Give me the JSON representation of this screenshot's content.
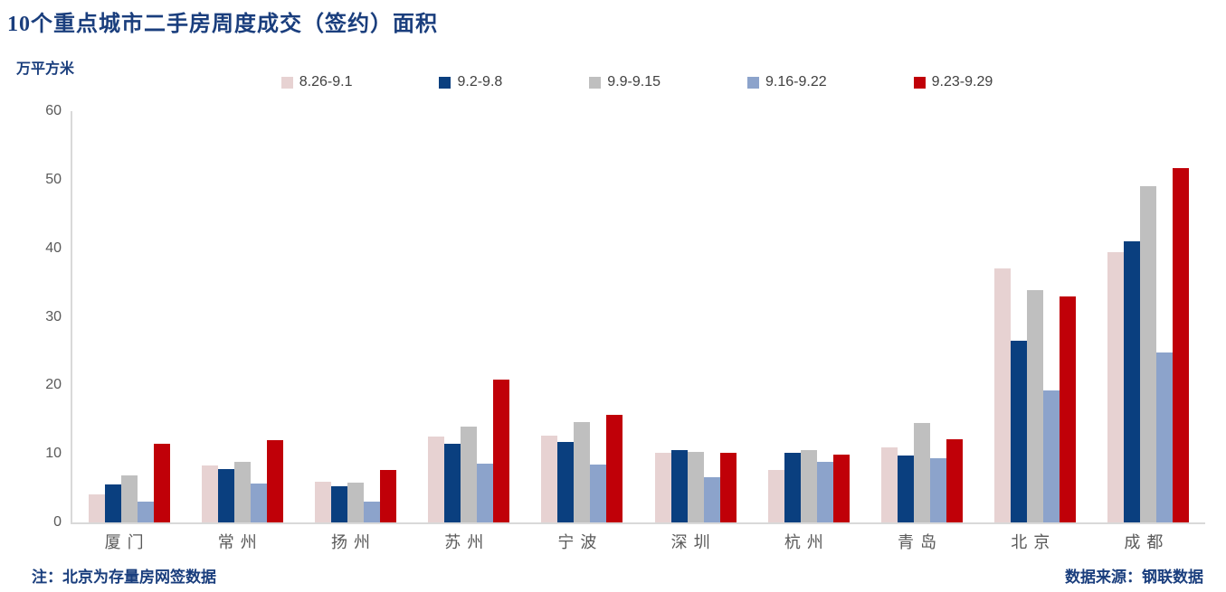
{
  "title": "10个重点城市二手房周度成交（签约）面积",
  "unit_label": "万平方米",
  "footer": {
    "note_left": "注：北京为存量房网签数据",
    "note_right": "数据来源：钢联数据"
  },
  "colors": {
    "title_text": "#1A3E7D",
    "axis_text": "#595959",
    "axis_line": "#D9D9D9",
    "legend_text": "#404040",
    "background": "#FFFFFF"
  },
  "chart_data": {
    "type": "bar",
    "title": "10个重点城市二手房周度成交（签约）面积",
    "xlabel": "",
    "ylabel": "万平方米",
    "ylim": [
      0,
      60
    ],
    "ytick_step": 10,
    "grid": false,
    "legend_position": "top",
    "categories": [
      "厦门",
      "常州",
      "扬州",
      "苏州",
      "宁波",
      "深圳",
      "杭州",
      "青岛",
      "北京",
      "成都"
    ],
    "series": [
      {
        "name": "8.26-9.1",
        "color": "#E7D2D2",
        "values": [
          4.1,
          8.3,
          6.0,
          12.5,
          12.7,
          10.2,
          7.7,
          10.9,
          37.0,
          39.4
        ]
      },
      {
        "name": "9.2-9.8",
        "color": "#0A3F7F",
        "values": [
          5.5,
          7.8,
          5.3,
          11.5,
          11.7,
          10.6,
          10.1,
          9.8,
          26.5,
          41.0
        ]
      },
      {
        "name": "9.9-9.15",
        "color": "#BFBFBF",
        "values": [
          6.9,
          8.9,
          5.8,
          14.0,
          14.6,
          10.3,
          10.6,
          14.5,
          33.9,
          49.1
        ]
      },
      {
        "name": "9.16-9.22",
        "color": "#8CA3CB",
        "values": [
          3.1,
          5.7,
          3.0,
          8.6,
          8.5,
          6.6,
          8.9,
          9.4,
          19.2,
          24.8
        ]
      },
      {
        "name": "9.23-9.29",
        "color": "#C00008",
        "values": [
          11.5,
          12.0,
          7.7,
          20.9,
          15.7,
          10.1,
          9.9,
          12.1,
          33.0,
          51.7
        ]
      }
    ]
  }
}
